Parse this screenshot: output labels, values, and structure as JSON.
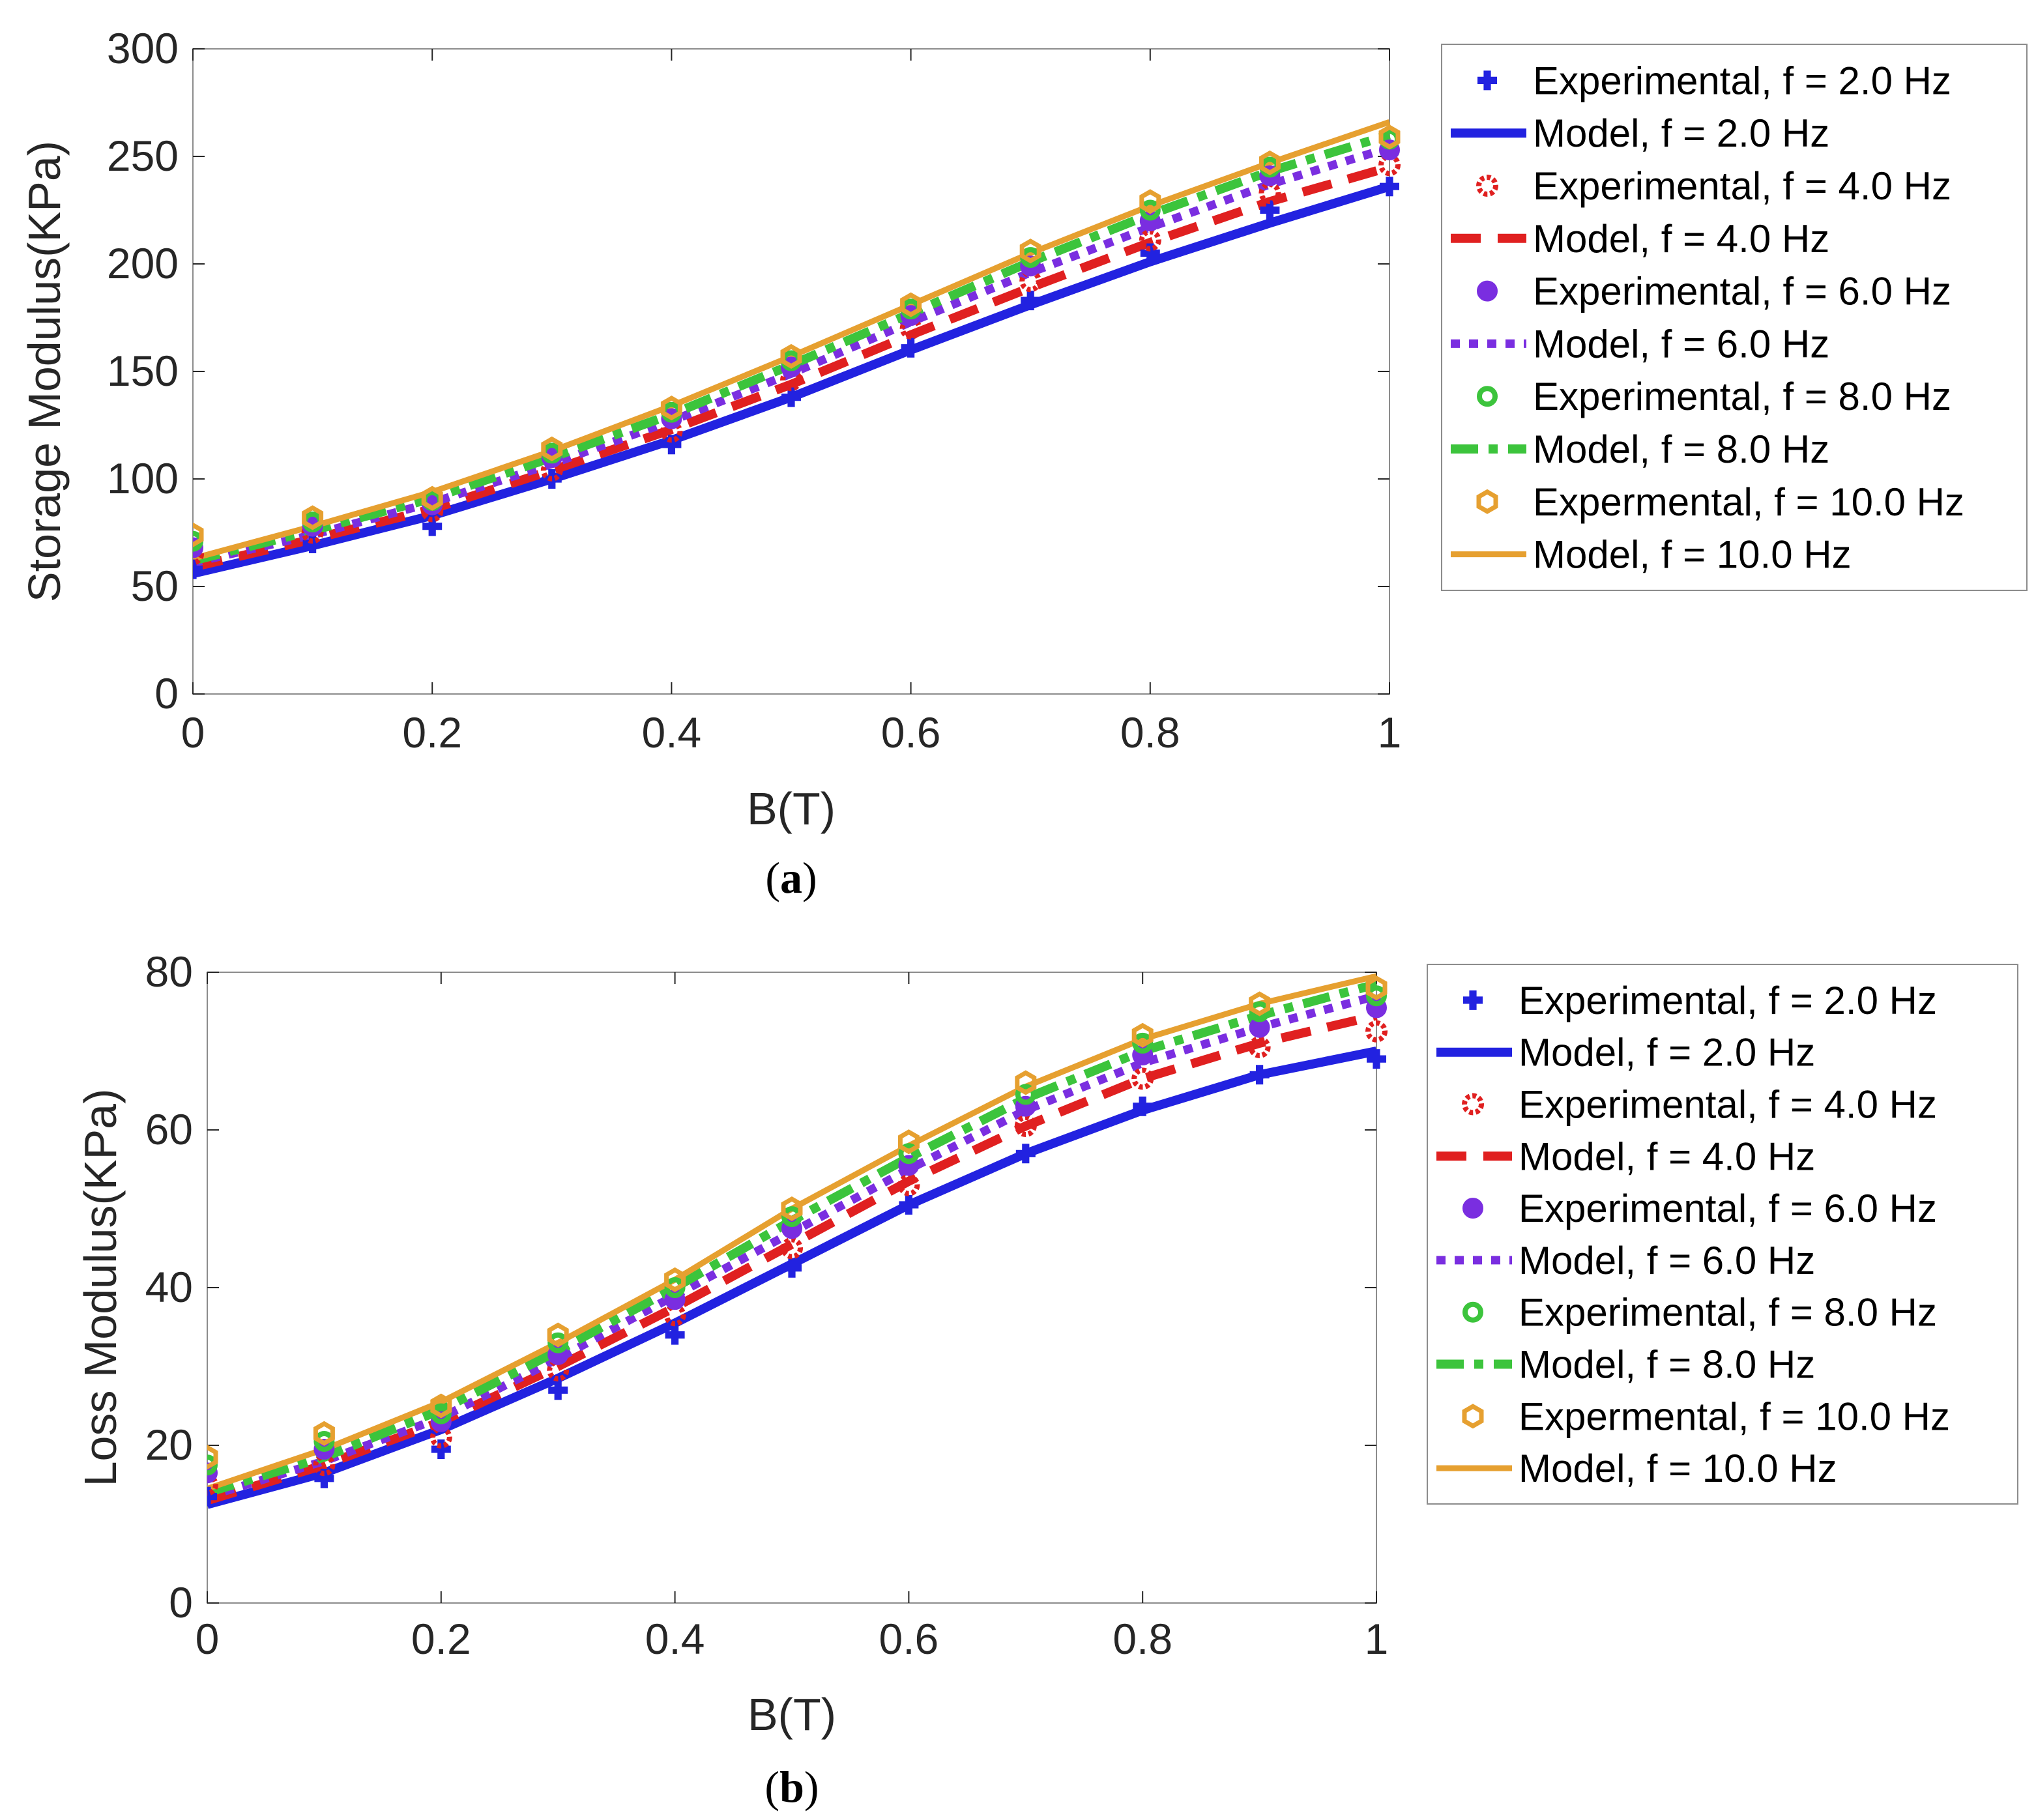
{
  "colors": {
    "f2": "#2222e0",
    "f4": "#e02020",
    "f6": "#7a2ee0",
    "f8": "#3cc43c",
    "f10": "#e6a030",
    "axis": "#262626",
    "grid_box": "#8c8c8c"
  },
  "legend_entries": [
    {
      "label": "Experimental, f = 2.0 Hz",
      "kind": "marker",
      "marker": "plus",
      "color_key": "f2"
    },
    {
      "label": "Model, f = 2.0 Hz",
      "kind": "line",
      "dash": "solid-thick",
      "color_key": "f2"
    },
    {
      "label": "Experimental, f = 4.0 Hz",
      "kind": "marker",
      "marker": "gear",
      "color_key": "f4"
    },
    {
      "label": "Model, f = 4.0 Hz",
      "kind": "line",
      "dash": "dash",
      "color_key": "f4"
    },
    {
      "label": "Experimental, f = 6.0 Hz",
      "kind": "marker",
      "marker": "octagon-filled",
      "color_key": "f6"
    },
    {
      "label": "Model, f = 6.0 Hz",
      "kind": "line",
      "dash": "dot",
      "color_key": "f6"
    },
    {
      "label": "Experimental, f = 8.0 Hz",
      "kind": "marker",
      "marker": "octagon-ring",
      "color_key": "f8"
    },
    {
      "label": "Model, f = 8.0 Hz",
      "kind": "line",
      "dash": "dashdot",
      "color_key": "f8"
    },
    {
      "label": "Expermental, f = 10.0 Hz",
      "kind": "marker",
      "marker": "hex-ring",
      "color_key": "f10"
    },
    {
      "label": "Model, f = 10.0 Hz",
      "kind": "line",
      "dash": "solid",
      "color_key": "f10"
    }
  ],
  "chart_data": [
    {
      "id": "a",
      "caption": "(a)",
      "caption_letter": "a",
      "type": "line",
      "title": "",
      "xlabel": "B(T)",
      "ylabel": "Storage Modulus(KPa)",
      "xlim": [
        0,
        1
      ],
      "ylim": [
        0,
        300
      ],
      "xticks": [
        0,
        0.2,
        0.4,
        0.6,
        0.8,
        1
      ],
      "xtick_labels": [
        "0",
        "0.2",
        "0.4",
        "0.6",
        "0.8",
        "1"
      ],
      "yticks": [
        0,
        50,
        100,
        150,
        200,
        250,
        300
      ],
      "ytick_labels": [
        "0",
        "50",
        "100",
        "150",
        "200",
        "250",
        "300"
      ],
      "legend": "outside-right",
      "x": [
        0,
        0.1,
        0.2,
        0.3,
        0.4,
        0.5,
        0.6,
        0.7,
        0.8,
        0.9,
        1.0
      ],
      "experimental": [
        {
          "name": "Experimental, f = 2.0 Hz",
          "color_key": "f2",
          "values": [
            58,
            70,
            78,
            100,
            116,
            138,
            161,
            183,
            205,
            225,
            236
          ]
        },
        {
          "name": "Experimental, f = 4.0 Hz",
          "color_key": "f4",
          "values": [
            65,
            75,
            85,
            104,
            122,
            146,
            170,
            192,
            211,
            233,
            246
          ]
        },
        {
          "name": "Experimental, f = 6.0 Hz",
          "color_key": "f6",
          "values": [
            68,
            78,
            88,
            110,
            128,
            152,
            176,
            199,
            220,
            241,
            253
          ]
        },
        {
          "name": "Experimental, f = 8.0 Hz",
          "color_key": "f8",
          "values": [
            71,
            80,
            90,
            112,
            131,
            155,
            179,
            203,
            225,
            245,
            258
          ]
        },
        {
          "name": "Expermental, f = 10.0 Hz",
          "color_key": "f10",
          "values": [
            74,
            82,
            91,
            114,
            133,
            157,
            181,
            206,
            229,
            247,
            259
          ]
        }
      ],
      "models": [
        {
          "name": "Model, f = 2.0 Hz",
          "color_key": "f2",
          "values": [
            56,
            69,
            83,
            100,
            118,
            138,
            160,
            181,
            201,
            219,
            236
          ]
        },
        {
          "name": "Model, f = 4.0 Hz",
          "color_key": "f4",
          "values": [
            59,
            72,
            86,
            104,
            123,
            144,
            167,
            189,
            210,
            229,
            245
          ]
        },
        {
          "name": "Model, f = 6.0 Hz",
          "color_key": "f6",
          "values": [
            61,
            74,
            89,
            107,
            127,
            149,
            173,
            196,
            217,
            237,
            254
          ]
        },
        {
          "name": "Model, f = 8.0 Hz",
          "color_key": "f8",
          "values": [
            62,
            76,
            91,
            110,
            130,
            153,
            177,
            201,
            223,
            243,
            260
          ]
        },
        {
          "name": "Model, f = 10.0 Hz",
          "color_key": "f10",
          "values": [
            63,
            78,
            94,
            113,
            134,
            157,
            181,
            205,
            227,
            247,
            266
          ]
        }
      ]
    },
    {
      "id": "b",
      "caption": "(b)",
      "caption_letter": "b",
      "type": "line",
      "title": "",
      "xlabel": "B(T)",
      "ylabel": "Loss Modulus(KPa)",
      "xlim": [
        0,
        1
      ],
      "ylim": [
        0,
        80
      ],
      "xticks": [
        0,
        0.2,
        0.4,
        0.6,
        0.8,
        1
      ],
      "xtick_labels": [
        "0",
        "0.2",
        "0.4",
        "0.6",
        "0.8",
        "1"
      ],
      "yticks": [
        0,
        20,
        40,
        60,
        80
      ],
      "ytick_labels": [
        "0",
        "20",
        "40",
        "60",
        "80"
      ],
      "legend": "outside-right",
      "x": [
        0,
        0.1,
        0.2,
        0.3,
        0.4,
        0.5,
        0.6,
        0.7,
        0.8,
        0.9,
        1.0
      ],
      "experimental": [
        {
          "name": "Experimental, f = 2.0 Hz",
          "color_key": "f2",
          "values": [
            13.5,
            15.8,
            19.5,
            27,
            34,
            42.5,
            50.5,
            57,
            63,
            67,
            69
          ]
        },
        {
          "name": "Experimental, f = 4.0 Hz",
          "color_key": "f4",
          "values": [
            15,
            17.5,
            21,
            29.5,
            36.5,
            45,
            53,
            60.5,
            66.5,
            70.5,
            72.5
          ]
        },
        {
          "name": "Experimental, f = 6.0 Hz",
          "color_key": "f6",
          "values": [
            16.5,
            19.5,
            23,
            31.5,
            38.5,
            47.5,
            55.5,
            63,
            69.5,
            73,
            75.5
          ]
        },
        {
          "name": "Experimental, f = 8.0 Hz",
          "color_key": "f8",
          "values": [
            17.5,
            20.5,
            24,
            33,
            40,
            49,
            57,
            64.5,
            71,
            75,
            77
          ]
        },
        {
          "name": "Expermental, f = 10.0 Hz",
          "color_key": "f10",
          "values": [
            18.5,
            21.5,
            25,
            34,
            41,
            50,
            58.5,
            66,
            72,
            76,
            78
          ]
        }
      ],
      "models": [
        {
          "name": "Model, f = 2.0 Hz",
          "color_key": "f2",
          "values": [
            12.5,
            16.5,
            22,
            28.5,
            35.5,
            43,
            50.5,
            57,
            62.5,
            67,
            70
          ]
        },
        {
          "name": "Model, f = 4.0 Hz",
          "color_key": "f4",
          "values": [
            13,
            17.5,
            23,
            30,
            37.5,
            45.5,
            53.5,
            60.5,
            66.5,
            71,
            74.5
          ]
        },
        {
          "name": "Model, f = 6.0 Hz",
          "color_key": "f6",
          "values": [
            13.5,
            18,
            23.5,
            31,
            39,
            47,
            55,
            62.5,
            68.5,
            73,
            77
          ]
        },
        {
          "name": "Model, f = 8.0 Hz",
          "color_key": "f8",
          "values": [
            14,
            18.5,
            24.5,
            32,
            40,
            48.5,
            56.5,
            64,
            70,
            74.5,
            78.5
          ]
        },
        {
          "name": "Model, f = 10.0 Hz",
          "color_key": "f10",
          "values": [
            14.5,
            19.5,
            25.5,
            33,
            41,
            50,
            58,
            65.5,
            71.5,
            76,
            79.5
          ]
        }
      ]
    }
  ]
}
